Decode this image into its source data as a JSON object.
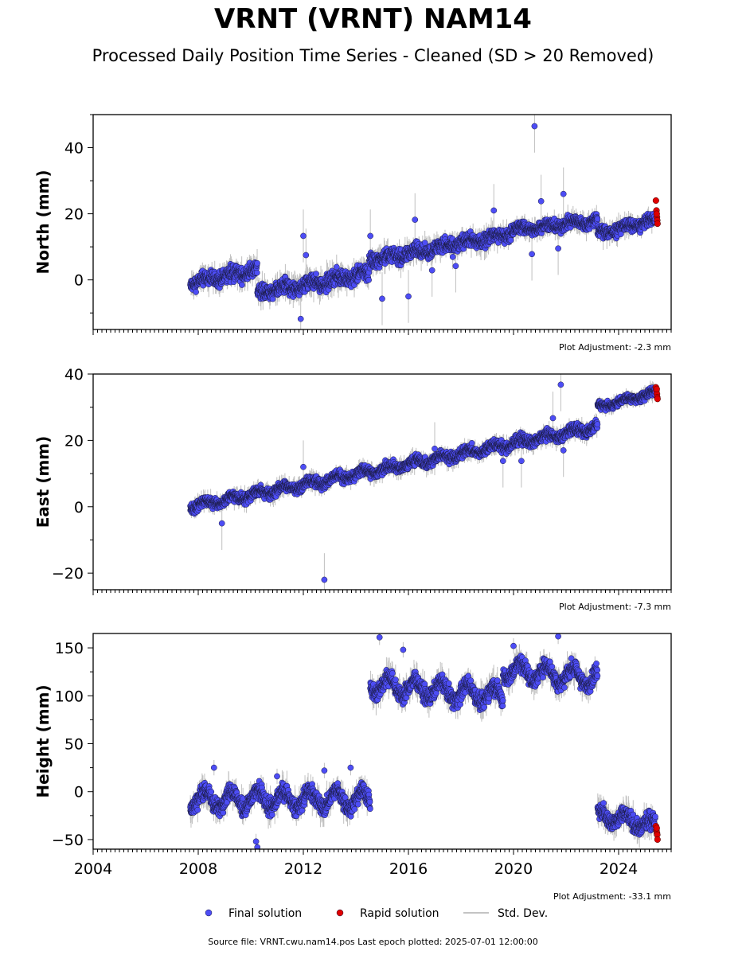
{
  "title": "VRNT (VRNT) NAM14",
  "subtitle": "Processed Daily Position Time Series - Cleaned (SD > 20 Removed)",
  "footer": "Source file: VRNT.cwu.nam14.pos  Last epoch plotted: 2025-07-01 12:00:00",
  "colors": {
    "final": "#4d4df5",
    "rapid": "#e00000",
    "stddev": "#b0b0b0",
    "edge": "#1a1a40"
  },
  "legend": [
    {
      "key": "final",
      "label": "Final solution"
    },
    {
      "key": "rapid",
      "label": "Rapid solution"
    },
    {
      "key": "stddev",
      "label": "Std. Dev."
    }
  ],
  "chart_data": [
    {
      "type": "scatter",
      "ylabel": "North (mm)",
      "adjustment": "Plot Adjustment: -2.3 mm",
      "xlim": [
        2004.0,
        2026.0
      ],
      "ylim": [
        -15,
        50
      ],
      "yticks": [
        0,
        20,
        40
      ],
      "xticks": [
        2004,
        2008,
        2012,
        2016,
        2020,
        2024
      ],
      "show_xtick_labels": false,
      "segments": [
        {
          "start": 2007.7,
          "end": 2010.25,
          "y0": -1,
          "y1": 3,
          "noise": 1.6,
          "wave": 0.8
        },
        {
          "start": 2010.25,
          "end": 2012.5,
          "y0": -4,
          "y1": -1,
          "noise": 1.6,
          "wave": 0.8
        },
        {
          "start": 2012.5,
          "end": 2014.5,
          "y0": -1,
          "y1": 2,
          "noise": 1.6,
          "wave": 0.8
        },
        {
          "start": 2014.5,
          "end": 2016.0,
          "y0": 6,
          "y1": 8,
          "noise": 1.5,
          "wave": 0.8
        },
        {
          "start": 2016.0,
          "end": 2019.9,
          "y0": 8,
          "y1": 14,
          "noise": 1.5,
          "wave": 0.8
        },
        {
          "start": 2019.9,
          "end": 2023.2,
          "y0": 15,
          "y1": 18,
          "noise": 1.3,
          "wave": 0.7
        },
        {
          "start": 2023.2,
          "end": 2025.4,
          "y0": 14,
          "y1": 18,
          "noise": 1.3,
          "wave": 0.7
        }
      ],
      "outliers": [
        [
          2020.8,
          46.5
        ],
        [
          2021.9,
          26
        ],
        [
          2021.05,
          23.8
        ],
        [
          2014.55,
          13.3
        ],
        [
          2012.0,
          13.3
        ],
        [
          2011.9,
          -11.8
        ],
        [
          2016.0,
          -5
        ],
        [
          2015.0,
          -5.7
        ],
        [
          2019.25,
          21
        ],
        [
          2016.25,
          18.2
        ],
        [
          2012.1,
          7.5
        ],
        [
          2020.7,
          7.8
        ],
        [
          2017.8,
          4.2
        ],
        [
          2021.7,
          9.5
        ],
        [
          2016.9,
          2.9
        ]
      ],
      "rapid": [
        [
          2025.42,
          24
        ],
        [
          2025.44,
          21
        ],
        [
          2025.46,
          19
        ],
        [
          2025.47,
          18
        ],
        [
          2025.48,
          17
        ],
        [
          2025.45,
          20
        ]
      ]
    },
    {
      "type": "scatter",
      "ylabel": "East (mm)",
      "adjustment": "Plot Adjustment: -7.3 mm",
      "xlim": [
        2004.0,
        2026.0
      ],
      "ylim": [
        -25,
        40
      ],
      "yticks": [
        -20,
        0,
        20,
        40
      ],
      "xticks": [
        2004,
        2008,
        2012,
        2016,
        2020,
        2024
      ],
      "show_xtick_labels": false,
      "segments": [
        {
          "start": 2007.7,
          "end": 2023.2,
          "y0": 0,
          "y1": 24,
          "noise": 1.1,
          "wave": 0.9
        },
        {
          "start": 2023.2,
          "end": 2025.4,
          "y0": 30,
          "y1": 34.5,
          "noise": 0.9,
          "wave": 0.6
        }
      ],
      "outliers": [
        [
          2021.8,
          36.8
        ],
        [
          2012.8,
          -22
        ],
        [
          2008.9,
          -5
        ],
        [
          2012.0,
          12
        ],
        [
          2017.0,
          17.5
        ],
        [
          2021.5,
          26.7
        ],
        [
          2019.6,
          13.8
        ],
        [
          2020.3,
          13.8
        ],
        [
          2021.9,
          17
        ]
      ],
      "rapid": [
        [
          2025.42,
          36
        ],
        [
          2025.44,
          35
        ],
        [
          2025.46,
          34
        ],
        [
          2025.47,
          33
        ],
        [
          2025.48,
          32.5
        ],
        [
          2025.45,
          35.5
        ]
      ]
    },
    {
      "type": "scatter",
      "ylabel": "Height (mm)",
      "adjustment": "Plot Adjustment: -33.1 mm",
      "xlim": [
        2004.0,
        2026.0
      ],
      "ylim": [
        -60,
        165
      ],
      "yticks": [
        -50,
        0,
        50,
        100,
        150
      ],
      "xticks": [
        2004,
        2008,
        2012,
        2016,
        2020,
        2024
      ],
      "xtick_labels": [
        "2004",
        "2008",
        "2012",
        "2016",
        "2020",
        "2024"
      ],
      "show_xtick_labels": true,
      "segments": [
        {
          "start": 2007.7,
          "end": 2014.55,
          "y0": -8,
          "y1": -8,
          "noise": 6,
          "wave": 9
        },
        {
          "start": 2014.55,
          "end": 2019.6,
          "y0": 112,
          "y1": 100,
          "noise": 6,
          "wave": 9
        },
        {
          "start": 2019.6,
          "end": 2023.2,
          "y0": 128,
          "y1": 118,
          "noise": 6,
          "wave": 9
        },
        {
          "start": 2023.2,
          "end": 2025.4,
          "y0": -24,
          "y1": -36,
          "noise": 6,
          "wave": 6
        }
      ],
      "outliers": [
        [
          2014.9,
          161
        ],
        [
          2021.7,
          162
        ],
        [
          2015.8,
          148
        ],
        [
          2010.2,
          -52
        ],
        [
          2010.25,
          -58
        ],
        [
          2008.6,
          25
        ],
        [
          2013.8,
          25
        ],
        [
          2011.0,
          16
        ],
        [
          2012.8,
          22
        ],
        [
          2020.0,
          152
        ]
      ],
      "rapid": [
        [
          2025.42,
          -36
        ],
        [
          2025.44,
          -40
        ],
        [
          2025.46,
          -43
        ],
        [
          2025.47,
          -45
        ],
        [
          2025.48,
          -50
        ],
        [
          2025.45,
          -38
        ]
      ]
    }
  ]
}
